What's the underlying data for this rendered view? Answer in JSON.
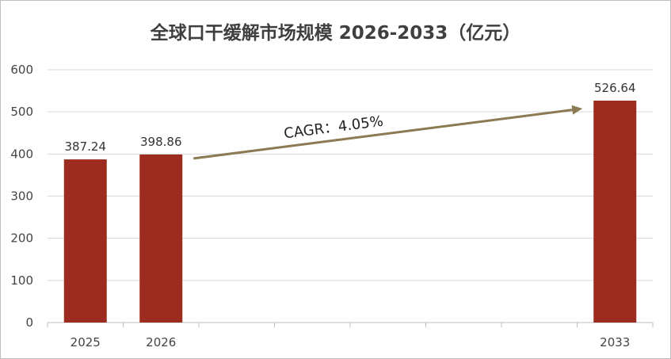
{
  "chart_data": {
    "type": "bar",
    "title": "全球口干缓解市场规模 2026-2033（亿元）",
    "xlabel": "",
    "ylabel": "",
    "categories": [
      "2025",
      "2026",
      "",
      "",
      "",
      "",
      "",
      "2033"
    ],
    "values": [
      387.24,
      398.86,
      null,
      null,
      null,
      null,
      null,
      526.64
    ],
    "data_labels": [
      "387.24",
      "398.86",
      "",
      "",
      "",
      "",
      "",
      "526.64"
    ],
    "ylim": [
      0,
      600
    ],
    "yticks": [
      "0",
      "100",
      "200",
      "300",
      "400",
      "500",
      "600"
    ],
    "grid": true,
    "bar_color": "#9b2c1f",
    "annotation": {
      "text": "CAGR：4.05%",
      "from_category_index": 1,
      "to_category_index": 7,
      "arrow_color": "#8b7a52"
    }
  }
}
